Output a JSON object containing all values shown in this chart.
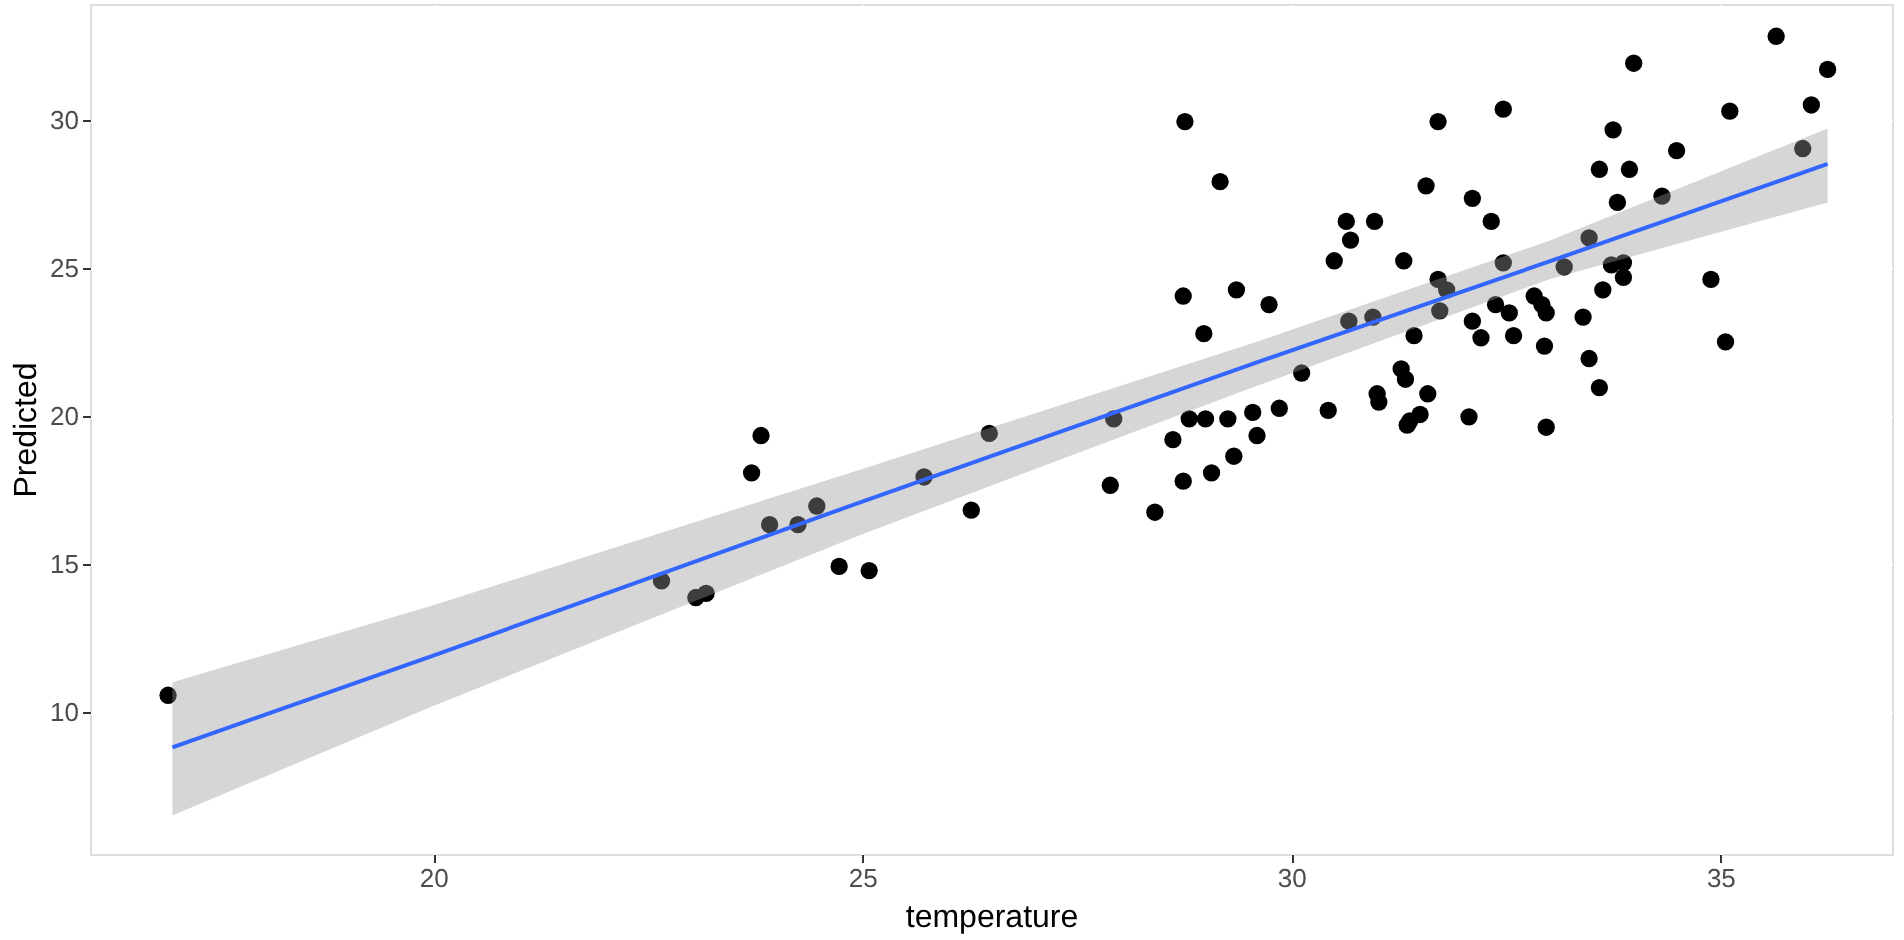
{
  "chart_data": {
    "type": "scatter",
    "xlabel": "temperature",
    "ylabel": "Predicted",
    "xlim": [
      16.0,
      37.0
    ],
    "ylim": [
      5.2,
      33.9
    ],
    "xticks": [
      20,
      25,
      30,
      35
    ],
    "yticks": [
      10,
      15,
      20,
      25,
      30
    ],
    "grid": true,
    "series": [
      {
        "marker": "circle",
        "color": "#000000",
        "x": [
          16.91,
          22.66,
          23.06,
          23.18,
          23.71,
          23.82,
          23.92,
          24.25,
          24.47,
          24.73,
          25.08,
          25.72,
          26.48,
          26.27,
          27.93,
          27.89,
          28.41,
          28.62,
          28.74,
          28.81,
          29.0,
          29.26,
          28.74,
          29.36,
          28.98,
          29.74,
          29.07,
          29.33,
          29.55,
          29.6,
          29.86,
          30.12,
          30.43,
          30.5,
          30.64,
          30.69,
          30.97,
          30.67,
          30.95,
          31.31,
          31.0,
          31.02,
          31.28,
          31.35,
          28.76,
          29.17,
          35.65,
          33.99,
          36.25,
          32.47,
          31.71,
          35.11,
          36.06,
          33.75,
          34.49,
          35.96,
          33.59,
          33.94,
          31.57,
          32.11,
          33.8,
          34.32,
          32.33,
          33.47,
          32.47,
          33.18,
          33.73,
          33.87,
          33.87,
          33.63,
          31.71,
          31.81,
          31.73,
          32.38,
          32.54,
          32.83,
          32.92,
          32.97,
          33.4,
          32.11,
          32.21,
          32.59,
          32.95,
          31.43,
          33.47,
          33.59,
          34.89,
          35.06,
          31.33,
          31.59,
          31.38,
          31.5,
          32.07,
          32.97
        ],
        "values": [
          10.56,
          14.42,
          13.86,
          14.0,
          18.07,
          19.33,
          16.32,
          16.32,
          16.95,
          14.91,
          14.77,
          17.93,
          19.4,
          16.81,
          19.89,
          17.65,
          16.74,
          19.19,
          17.79,
          19.89,
          19.89,
          19.89,
          24.04,
          24.25,
          22.77,
          23.75,
          18.07,
          18.63,
          20.11,
          19.33,
          20.25,
          21.44,
          20.18,
          25.23,
          26.56,
          25.93,
          26.56,
          23.19,
          23.33,
          25.23,
          20.74,
          20.46,
          21.58,
          19.68,
          29.93,
          27.9,
          32.81,
          31.9,
          31.69,
          30.35,
          29.93,
          30.28,
          30.49,
          29.65,
          28.95,
          29.02,
          28.32,
          28.32,
          27.76,
          27.34,
          27.2,
          27.41,
          26.56,
          26.0,
          25.16,
          25.02,
          25.09,
          25.16,
          24.67,
          24.25,
          24.6,
          24.25,
          23.54,
          23.75,
          23.47,
          24.04,
          23.75,
          23.47,
          23.33,
          23.19,
          22.63,
          22.7,
          22.35,
          22.7,
          21.93,
          20.95,
          24.6,
          22.49,
          21.23,
          20.74,
          19.82,
          20.04,
          19.96,
          19.61
        ]
      },
      {
        "type": "line",
        "color": "#3366ff",
        "x": [
          16.96,
          20,
          25,
          29.5,
          33,
          36.25
        ],
        "values": [
          8.8,
          11.9,
          17.1,
          21.7,
          25.2,
          28.5
        ],
        "lower": [
          6.5,
          10.2,
          16.0,
          20.9,
          24.6,
          27.2
        ],
        "upper": [
          11.0,
          13.6,
          18.2,
          22.4,
          25.9,
          29.7
        ]
      }
    ]
  }
}
